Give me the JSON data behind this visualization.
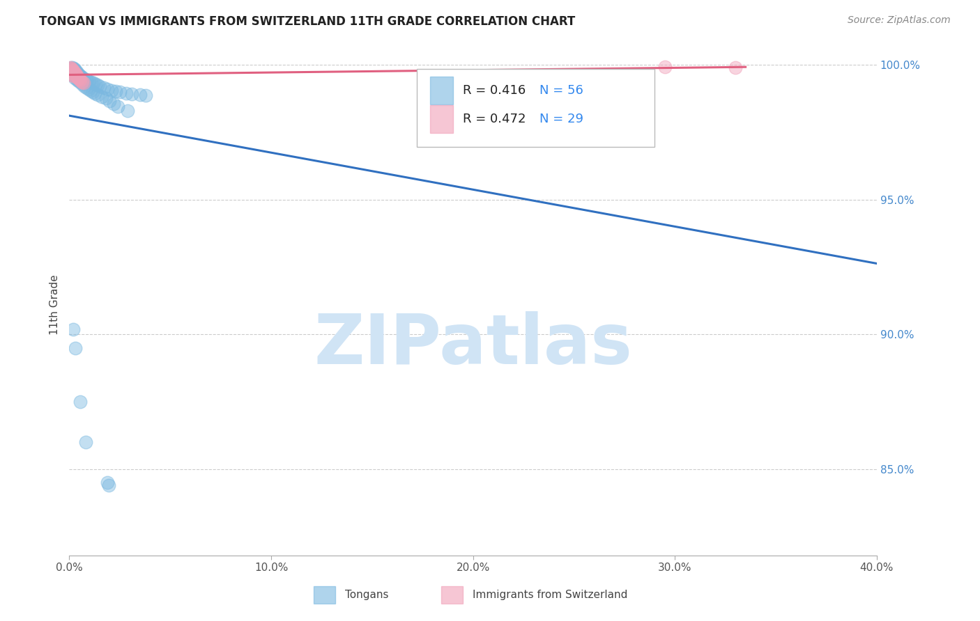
{
  "title": "TONGAN VS IMMIGRANTS FROM SWITZERLAND 11TH GRADE CORRELATION CHART",
  "source": "Source: ZipAtlas.com",
  "ylabel": "11th Grade",
  "legend1_label": "Tongans",
  "legend2_label": "Immigrants from Switzerland",
  "r1": 0.416,
  "n1": 56,
  "r2": 0.472,
  "n2": 29,
  "color_blue": "#7ab8e0",
  "color_pink": "#f0a0b8",
  "color_blue_line": "#3070c0",
  "color_pink_line": "#e06080",
  "blue_x": [
    0.0008,
    0.0012,
    0.0015,
    0.002,
    0.0025,
    0.003,
    0.0035,
    0.004,
    0.0045,
    0.005,
    0.0055,
    0.006,
    0.0065,
    0.007,
    0.008,
    0.009,
    0.01,
    0.011,
    0.012,
    0.013,
    0.014,
    0.015,
    0.017,
    0.019,
    0.021,
    0.023,
    0.025,
    0.028,
    0.031,
    0.035,
    0.038,
    0.0015,
    0.0025,
    0.0035,
    0.0045,
    0.0055,
    0.0065,
    0.0075,
    0.0085,
    0.0095,
    0.0105,
    0.0115,
    0.0125,
    0.014,
    0.016,
    0.018,
    0.02,
    0.022,
    0.024,
    0.029,
    0.002,
    0.003,
    0.0055,
    0.008,
    0.019,
    0.0195
  ],
  "blue_y": [
    0.999,
    0.9985,
    0.999,
    0.9988,
    0.9985,
    0.998,
    0.9975,
    0.997,
    0.9965,
    0.9962,
    0.9958,
    0.9955,
    0.9952,
    0.9948,
    0.9945,
    0.9942,
    0.9938,
    0.9935,
    0.9932,
    0.9928,
    0.9925,
    0.992,
    0.9915,
    0.991,
    0.9905,
    0.9902,
    0.9898,
    0.9895,
    0.9892,
    0.9888,
    0.9885,
    0.996,
    0.995,
    0.9945,
    0.994,
    0.9935,
    0.9928,
    0.992,
    0.9915,
    0.991,
    0.9905,
    0.99,
    0.9895,
    0.9888,
    0.988,
    0.9875,
    0.9865,
    0.9855,
    0.9845,
    0.983,
    0.902,
    0.895,
    0.875,
    0.86,
    0.845,
    0.844
  ],
  "pink_x": [
    0.0005,
    0.0008,
    0.001,
    0.0012,
    0.0015,
    0.0018,
    0.002,
    0.0022,
    0.0025,
    0.0028,
    0.003,
    0.0032,
    0.0035,
    0.0038,
    0.004,
    0.0042,
    0.0045,
    0.0048,
    0.0052,
    0.0055,
    0.006,
    0.0065,
    0.007,
    0.0005,
    0.001,
    0.0015,
    0.002,
    0.33,
    0.295
  ],
  "pink_y": [
    0.999,
    0.9988,
    0.9985,
    0.9982,
    0.998,
    0.9978,
    0.9975,
    0.9972,
    0.997,
    0.9968,
    0.9965,
    0.9962,
    0.996,
    0.9958,
    0.9955,
    0.9952,
    0.995,
    0.9948,
    0.9945,
    0.9942,
    0.9938,
    0.9935,
    0.9932,
    0.9975,
    0.9968,
    0.9962,
    0.9958,
    0.999,
    0.9992
  ],
  "xlim": [
    0.0,
    0.4
  ],
  "ylim": [
    0.818,
    1.004
  ],
  "xticks": [
    0.0,
    0.1,
    0.2,
    0.3,
    0.4
  ],
  "xtick_labels": [
    "0.0%",
    "10.0%",
    "20.0%",
    "30.0%",
    "40.0%"
  ],
  "yticks": [
    0.85,
    0.9,
    0.95,
    1.0
  ],
  "ytick_labels": [
    "85.0%",
    "90.0%",
    "95.0%",
    "100.0%"
  ],
  "grid_color": "#cccccc",
  "watermark_text": "ZIPatlas",
  "watermark_color": "#d0e4f5",
  "title_fontsize": 12,
  "source_fontsize": 10,
  "tick_fontsize": 11,
  "ylabel_fontsize": 11
}
